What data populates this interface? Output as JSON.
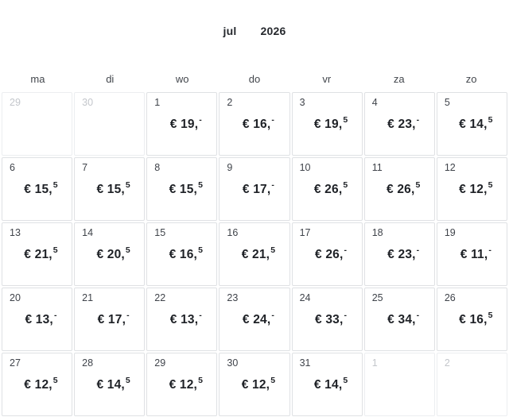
{
  "header": {
    "month": "jul",
    "year": "2026"
  },
  "weekdays": [
    "ma",
    "di",
    "wo",
    "do",
    "vr",
    "za",
    "zo"
  ],
  "currency_symbol": "€",
  "colors": {
    "price_text": "#1e2126",
    "day_number": "#3f434a",
    "muted_day_number": "#c3c6cb",
    "cell_border": "#dfe1e4",
    "muted_cell_border": "#eceef0"
  },
  "cells": [
    {
      "day": "29",
      "other_month": true
    },
    {
      "day": "30",
      "other_month": true
    },
    {
      "day": "1",
      "price": "19,-"
    },
    {
      "day": "2",
      "price": "16,-"
    },
    {
      "day": "3",
      "price": "19,5"
    },
    {
      "day": "4",
      "price": "23,-"
    },
    {
      "day": "5",
      "price": "14,5"
    },
    {
      "day": "6",
      "price": "15,5"
    },
    {
      "day": "7",
      "price": "15,5"
    },
    {
      "day": "8",
      "price": "15,5"
    },
    {
      "day": "9",
      "price": "17,-"
    },
    {
      "day": "10",
      "price": "26,5"
    },
    {
      "day": "11",
      "price": "26,5"
    },
    {
      "day": "12",
      "price": "12,5"
    },
    {
      "day": "13",
      "price": "21,5"
    },
    {
      "day": "14",
      "price": "20,5"
    },
    {
      "day": "15",
      "price": "16,5"
    },
    {
      "day": "16",
      "price": "21,5"
    },
    {
      "day": "17",
      "price": "26,-"
    },
    {
      "day": "18",
      "price": "23,-"
    },
    {
      "day": "19",
      "price": "11,-"
    },
    {
      "day": "20",
      "price": "13,-"
    },
    {
      "day": "21",
      "price": "17,-"
    },
    {
      "day": "22",
      "price": "13,-"
    },
    {
      "day": "23",
      "price": "24,-"
    },
    {
      "day": "24",
      "price": "33,-"
    },
    {
      "day": "25",
      "price": "34,-"
    },
    {
      "day": "26",
      "price": "16,5"
    },
    {
      "day": "27",
      "price": "12,5"
    },
    {
      "day": "28",
      "price": "14,5"
    },
    {
      "day": "29",
      "price": "12,5"
    },
    {
      "day": "30",
      "price": "12,5"
    },
    {
      "day": "31",
      "price": "14,5"
    },
    {
      "day": "1",
      "other_month": true
    },
    {
      "day": "2",
      "other_month": true
    }
  ]
}
